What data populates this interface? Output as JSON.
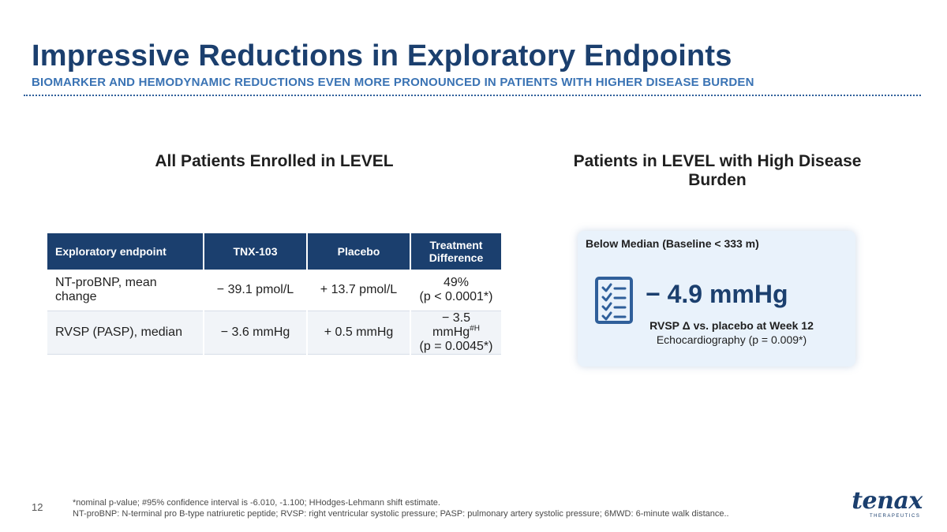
{
  "header": {
    "title": "Impressive Reductions in Exploratory Endpoints",
    "subtitle": "BIOMARKER AND HEMODYNAMIC REDUCTIONS EVEN MORE PRONOUNCED IN PATIENTS WITH HIGHER DISEASE BURDEN"
  },
  "left_section": {
    "heading": "All Patients Enrolled in LEVEL",
    "table": {
      "columns": [
        "Exploratory endpoint",
        "TNX-103",
        "Placebo",
        "Treatment Difference"
      ],
      "rows": [
        {
          "endpoint": "NT-proBNP, mean change",
          "tnx103": "− 39.1 pmol/L",
          "placebo": "+ 13.7 pmol/L",
          "difference_value": "49%",
          "difference_sup": "",
          "difference_p": "(p < 0.0001*)"
        },
        {
          "endpoint": "RVSP (PASP), median",
          "tnx103": "− 3.6 mmHg",
          "placebo": "+ 0.5 mmHg",
          "difference_value": "− 3.5 mmHg",
          "difference_sup": "#H",
          "difference_p": "(p = 0.0045*)"
        }
      ]
    }
  },
  "right_section": {
    "heading": "Patients in LEVEL with High Disease Burden",
    "card": {
      "label": "Below Median (Baseline < 333 m)",
      "icon": "checklist-icon",
      "value": "− 4.9 mmHg",
      "metric": "RVSP Δ vs. placebo at Week 12",
      "method": "Echocardiography (p = 0.009*)"
    }
  },
  "footer": {
    "page_number": "12",
    "footnote_line1": "*nominal p-value; #95% confidence interval is -6.010, -1.100; HHodges-Lehmann shift estimate.",
    "footnote_line2": "NT-proBNP: N-terminal pro B-type natriuretic peptide; RVSP: right ventricular systolic pressure; PASP: pulmonary artery systolic pressure; 6MWD: 6-minute walk distance..",
    "logo_word": "tenax",
    "logo_sub": "THERAPEUTICS"
  },
  "colors": {
    "brand_navy": "#1b3f6e",
    "subtitle_blue": "#3a73b4",
    "card_background": "#e9f2fb"
  }
}
